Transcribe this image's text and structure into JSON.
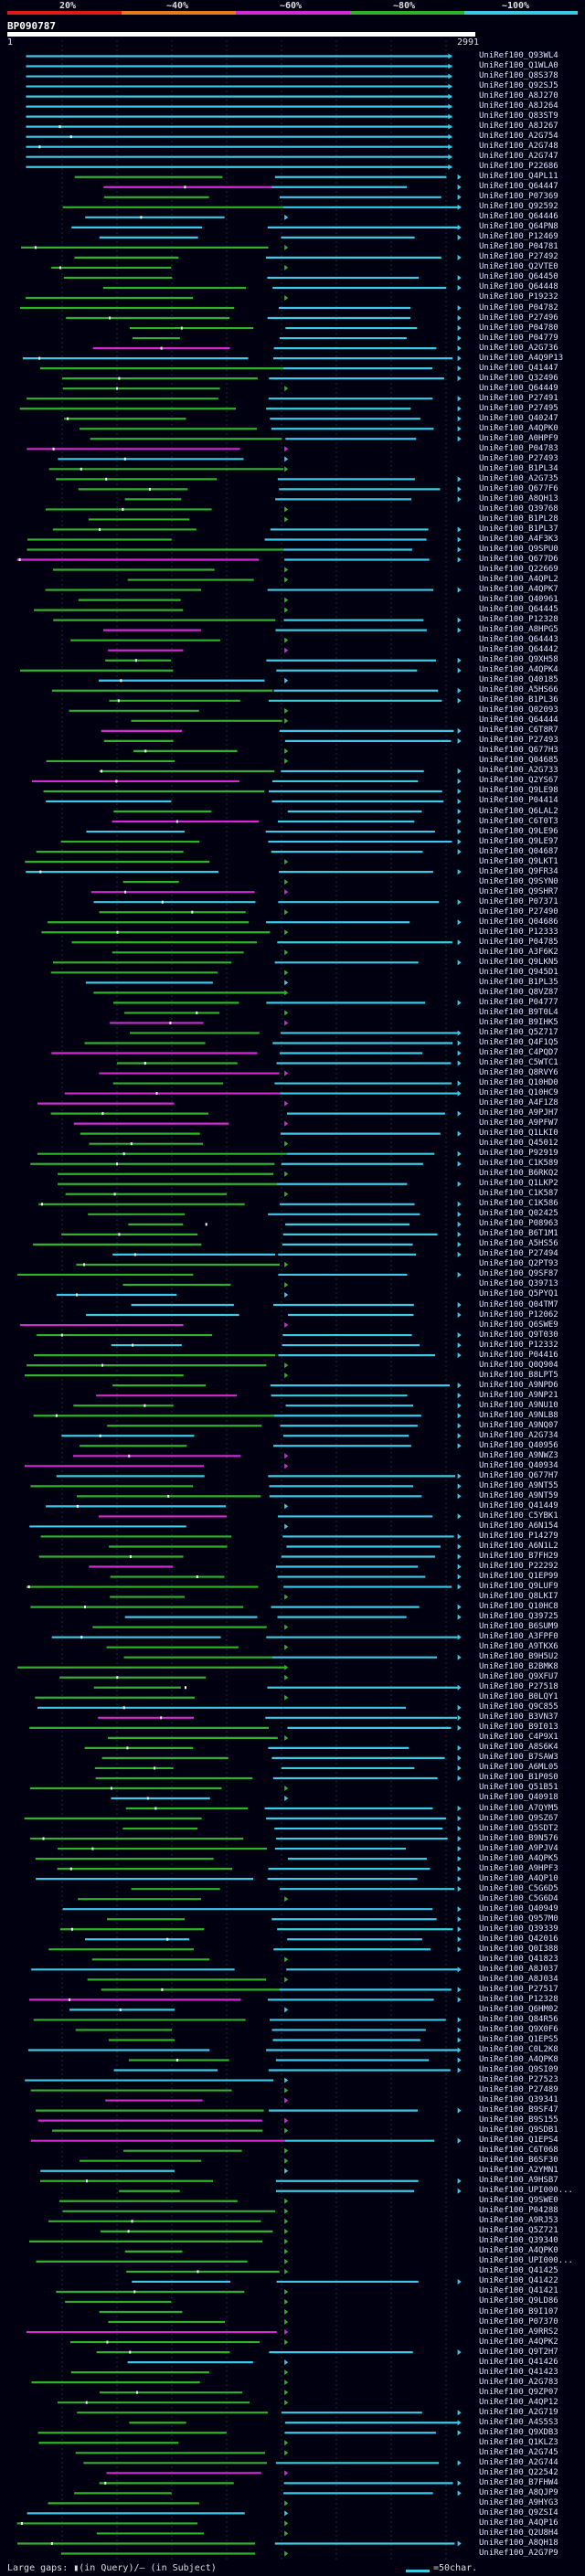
{
  "scale_labels": [
    "20%",
    "~40%",
    "~60%",
    "~80%",
    "~100%"
  ],
  "colors": {
    "red": "#e01a1a",
    "orange": "#e87c1a",
    "magenta": "#d32ad3",
    "green": "#2fb12a",
    "cyan": "#3cc9e6",
    "background": "#000010"
  },
  "query_title": "BP090787",
  "ruler": {
    "start": "1",
    "end": "2991"
  },
  "hits": [
    "UniRef100_Q93WL4",
    "UniRef100_Q1WLA0",
    "UniRef100_Q8S378",
    "UniRef100_Q92SJ5",
    "UniRef100_A8J270",
    "UniRef100_A8J264",
    "UniRef100_Q83ST9",
    "UniRef100_A8J267",
    "UniRef100_A2G754",
    "UniRef100_A2G748",
    "UniRef100_A2G747",
    "UniRef100_P22686",
    "UniRef100_Q4PL11",
    "UniRef100_Q64447",
    "UniRef100_P07369",
    "UniRef100_Q92592",
    "UniRef100_Q64446",
    "UniRef100_Q64PN8",
    "UniRef100_P12469",
    "UniRef100_P04781",
    "UniRef100_P27492",
    "UniRef100_Q2VTE0",
    "UniRef100_Q64450",
    "UniRef100_Q64448",
    "UniRef100_P19232",
    "UniRef100_P04782",
    "UniRef100_P27496",
    "UniRef100_P04780",
    "UniRef100_P04779",
    "UniRef100_A2G736",
    "UniRef100_A4Q9P13",
    "UniRef100_Q41447",
    "UniRef100_Q32496",
    "UniRef100_Q64449",
    "UniRef100_P27491",
    "UniRef100_P27495",
    "UniRef100_Q40247",
    "UniRef100_A4QPK0",
    "UniRef100_A0HPF9",
    "UniRef100_P04783",
    "UniRef100_P27493",
    "UniRef100_B1PL34",
    "UniRef100_A2G735",
    "UniRef100_Q677F6",
    "UniRef100_A8QH13",
    "UniRef100_Q39768",
    "UniRef100_B1PL28",
    "UniRef100_B1PL37",
    "UniRef100_A4F3K3",
    "UniRef100_Q9SPU0",
    "UniRef100_Q677D6",
    "UniRef100_Q22669",
    "UniRef100_A4QPL2",
    "UniRef100_A4QPK7",
    "UniRef100_Q40961",
    "UniRef100_Q64445",
    "UniRef100_P12328",
    "UniRef100_A8HPG5",
    "UniRef100_Q64443",
    "UniRef100_Q64442",
    "UniRef100_Q9XH58",
    "UniRef100_A4QPK4",
    "UniRef100_Q40185",
    "UniRef100_A5HS66",
    "UniRef100_B1PL36",
    "UniRef100_Q02093",
    "UniRef100_Q64444",
    "UniRef100_C6T8R7",
    "UniRef100_P27493",
    "UniRef100_Q677H3",
    "UniRef100_Q04685",
    "UniRef100_A2G733",
    "UniRef100_Q2YS67",
    "UniRef100_Q9LE98",
    "UniRef100_P04414",
    "UniRef100_Q6LAL2",
    "UniRef100_C6T0T3",
    "UniRef100_Q9LE96",
    "UniRef100_Q9LE97",
    "UniRef100_Q04687",
    "UniRef100_Q9LKT1",
    "UniRef100_Q9FR34",
    "UniRef100_Q9SYN0",
    "UniRef100_Q9SHR7",
    "UniRef100_P07371",
    "UniRef100_P27490",
    "UniRef100_Q04686",
    "UniRef100_P12333",
    "UniRef100_P04785",
    "UniRef100_A3F6K2",
    "UniRef100_Q9LKN5",
    "UniRef100_Q945D1",
    "UniRef100_B1PL35",
    "UniRef100_Q8VZ87",
    "UniRef100_P04777",
    "UniRef100_B9T0L4",
    "UniRef100_B9IHK5",
    "UniRef100_Q5Z717",
    "UniRef100_Q4F1Q5",
    "UniRef100_C4PQD7",
    "UniRef100_C5WTC1",
    "UniRef100_Q8RVY6",
    "UniRef100_Q10HD0",
    "UniRef100_Q10HC9",
    "UniRef100_A4F1Z8",
    "UniRef100_A9PJH7",
    "UniRef100_A9PFW7",
    "UniRef100_Q1LKI0",
    "UniRef100_Q45012",
    "UniRef100_P92919",
    "UniRef100_C1K589",
    "UniRef100_B6RKQ2",
    "UniRef100_Q1LKP2",
    "UniRef100_C1K587",
    "UniRef100_C1K586",
    "UniRef100_Q02425",
    "UniRef100_P08963",
    "UniRef100_B6T1M1",
    "UniRef100_A5HS56",
    "UniRef100_P27494",
    "UniRef100_Q2PT93",
    "UniRef100_Q9SF87",
    "UniRef100_Q39713",
    "UniRef100_Q5PYQ1",
    "UniRef100_Q04TM7",
    "UniRef100_P12062",
    "UniRef100_Q6SWE9",
    "UniRef100_Q9T030",
    "UniRef100_P12332",
    "UniRef100_P04416",
    "UniRef100_Q0Q904",
    "UniRef100_B8LPT5",
    "UniRef100_A9NPD6",
    "UniRef100_A9NP21",
    "UniRef100_A9NU10",
    "UniRef100_A9NLB8",
    "UniRef100_A9NQ07",
    "UniRef100_A2G734",
    "UniRef100_Q40956",
    "UniRef100_A9NWZ3",
    "UniRef100_Q40934",
    "UniRef100_Q677H7",
    "UniRef100_A9NT55",
    "UniRef100_A9NT59",
    "UniRef100_Q41449",
    "UniRef100_C5YBK1",
    "UniRef100_A6N154",
    "UniRef100_P14279",
    "UniRef100_A6N1L2",
    "UniRef100_B7FH29",
    "UniRef100_P22292",
    "UniRef100_Q1EP99",
    "UniRef100_Q9LUF9",
    "UniRef100_Q8LKI7",
    "UniRef100_Q10HC8",
    "UniRef100_Q39725",
    "UniRef100_B6SUM9",
    "UniRef100_A3FPF0",
    "UniRef100_A9TKX6",
    "UniRef100_B9H5U2",
    "UniRef100_B2BMK8",
    "UniRef100_Q9XFU7",
    "UniRef100_P27518",
    "UniRef100_B0LQY1",
    "UniRef100_Q9C855",
    "UniRef100_B3VN37",
    "UniRef100_B9I013",
    "UniRef100_C4P9X1",
    "UniRef100_A8S6K4",
    "UniRef100_B7SAW3",
    "UniRef100_A6ML05",
    "UniRef100_B1P0S0",
    "UniRef100_Q51B51",
    "UniRef100_Q40918",
    "UniRef100_A7QYM5",
    "UniRef100_Q9SZ67",
    "UniRef100_Q5SDT2",
    "UniRef100_B9N576",
    "UniRef100_A9PJV4",
    "UniRef100_A4QPK5",
    "UniRef100_A9HPF3",
    "UniRef100_A4QP10",
    "UniRef100_C5G6D5",
    "UniRef100_C5G6D4",
    "UniRef100_Q40949",
    "UniRef100_Q957M0",
    "UniRef100_Q39339",
    "UniRef100_Q42016",
    "UniRef100_Q0I388",
    "UniRef100_Q41823",
    "UniRef100_A8J037",
    "UniRef100_A8J034",
    "UniRef100_P27517",
    "UniRef100_P12328",
    "UniRef100_Q6HM02",
    "UniRef100_Q84R56",
    "UniRef100_Q9X0F6",
    "UniRef100_Q1EPS5",
    "UniRef100_C0L2K8",
    "UniRef100_A4QPK8",
    "UniRef100_Q9SI09",
    "UniRef100_P27523",
    "UniRef100_P27489",
    "UniRef100_Q39341",
    "UniRef100_B9SF47",
    "UniRef100_B9S155",
    "UniRef100_Q9SDB1",
    "UniRef100_Q1EPS4",
    "UniRef100_C6T068",
    "UniRef100_B6SF30",
    "UniRef100_A2YMN1",
    "UniRef100_A9HSB7",
    "UniRef100_UPI000...",
    "UniRef100_Q9SWE0",
    "UniRef100_P04288",
    "UniRef100_A9RJ53",
    "UniRef100_Q5Z721",
    "UniRef100_Q39340",
    "UniRef100_A4QPK0",
    "UniRef100_UPI000...",
    "UniRef100_Q41425",
    "UniRef100_Q41422",
    "UniRef100_Q41421",
    "UniRef100_Q9LD86",
    "UniRef100_B9I107",
    "UniRef100_P07370",
    "UniRef100_A9RRS2",
    "UniRef100_A4QPK2",
    "UniRef100_Q9T2H7",
    "UniRef100_Q41426",
    "UniRef100_Q41423",
    "UniRef100_A2G783",
    "UniRef100_Q9ZP07",
    "UniRef100_A4QP12",
    "UniRef100_A2G719",
    "UniRef100_A4S5S3",
    "UniRef100_Q9XDB3",
    "UniRef100_Q1KLZ3",
    "UniRef100_A2G745",
    "UniRef100_A2G744",
    "UniRef100_Q22542",
    "UniRef100_B7FHW4",
    "UniRef100_A8QJP9",
    "UniRef100_A9HYG3",
    "UniRef100_Q9ZSI4",
    "UniRef100_A4QP16",
    "UniRef100_Q2U8H4",
    "UniRef100_A8QH18",
    "UniRef100_A2G7P9"
  ],
  "footer": {
    "legend": "Large gaps: ▮(in Query)/– (in Subject)",
    "scale_label": "=50char."
  }
}
